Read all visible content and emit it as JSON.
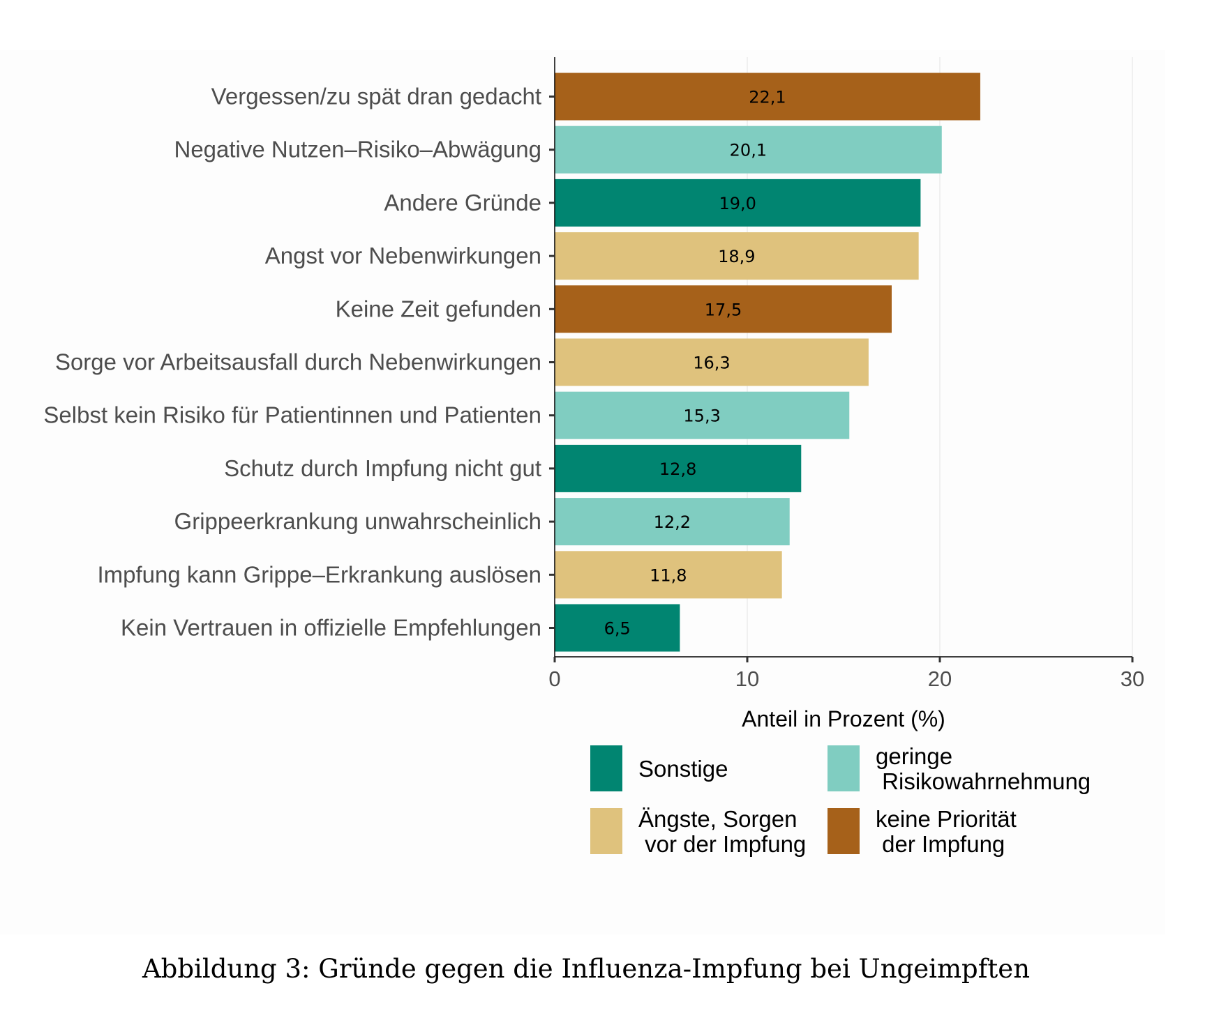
{
  "chart_data": {
    "type": "bar",
    "orientation": "horizontal",
    "categories": [
      "Vergessen/zu spät dran gedacht",
      "Negative Nutzen–Risiko–Abwägung",
      "Andere Gründe",
      "Angst vor Nebenwirkungen",
      "Keine Zeit gefunden",
      "Sorge vor Arbeitsausfall durch Nebenwirkungen",
      "Selbst kein Risiko für Patientinnen und Patienten",
      "Schutz durch Impfung nicht gut",
      "Grippeerkrankung unwahrscheinlich",
      "Impfung kann Grippe–Erkrankung auslösen",
      "Kein Vertrauen in offizielle Empfehlungen"
    ],
    "values": [
      22.1,
      20.1,
      19.0,
      18.9,
      17.5,
      16.3,
      15.3,
      12.8,
      12.2,
      11.8,
      6.5
    ],
    "value_labels": [
      "22,1",
      "20,1",
      "19,0",
      "18,9",
      "17,5",
      "16,3",
      "15,3",
      "12,8",
      "12,2",
      "11,8",
      "6,5"
    ],
    "groups": [
      "keine_prioritaet",
      "geringe_risiko",
      "sonstige",
      "aengste",
      "keine_prioritaet",
      "aengste",
      "geringe_risiko",
      "sonstige",
      "geringe_risiko",
      "aengste",
      "sonstige"
    ],
    "xlabel": "Anteil in Prozent (%)",
    "xlim": [
      0,
      30
    ],
    "xticks": [
      0,
      10,
      20,
      30
    ],
    "xtick_labels": [
      "0",
      "10",
      "20",
      "30"
    ],
    "grid": true,
    "legend": {
      "placement": "bottom",
      "entries": [
        {
          "key": "sonstige",
          "lines": [
            "Sonstige"
          ],
          "color": "#018571"
        },
        {
          "key": "geringe_risiko",
          "lines": [
            "geringe",
            " Risikowahrnehmung"
          ],
          "color": "#80cdc1"
        },
        {
          "key": "aengste",
          "lines": [
            "Ängste, Sorgen",
            " vor der Impfung"
          ],
          "color": "#dfc27d"
        },
        {
          "key": "keine_prioritaet",
          "lines": [
            "keine Priorität",
            " der Impfung"
          ],
          "color": "#a6611a"
        }
      ]
    }
  },
  "caption": "Abbildung 3: Gründe gegen die Influenza-Impfung bei Ungeimpften"
}
